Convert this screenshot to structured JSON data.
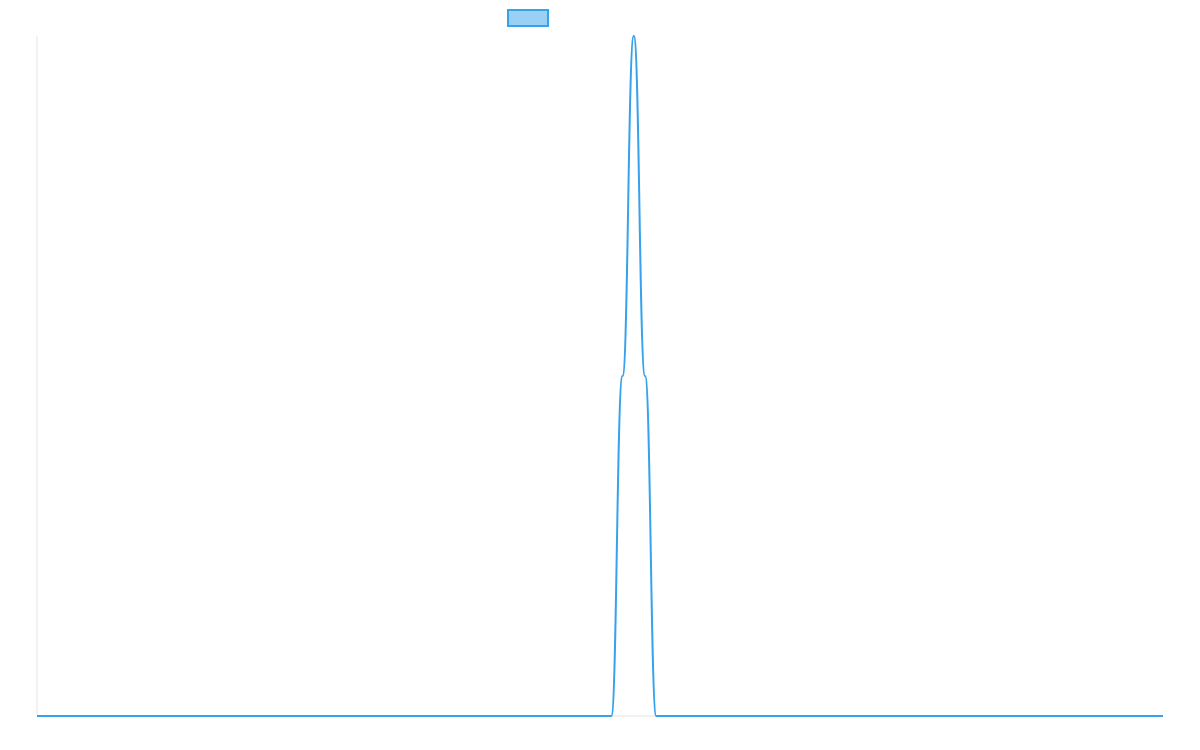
{
  "chart_data": {
    "type": "line",
    "title": "",
    "xlabel": "",
    "ylabel": "",
    "grid": false,
    "legend": {
      "placement": "top-center",
      "entries": [
        {
          "label": "",
          "color": "#36a2eb",
          "fill": "#9ad0f5"
        }
      ]
    },
    "xlim": [
      0,
      100
    ],
    "ylim": [
      0,
      1
    ],
    "series": [
      {
        "color": "#36a2eb",
        "points": [
          [
            0,
            0
          ],
          [
            51,
            0
          ],
          [
            52,
            0.5
          ],
          [
            53,
            1.0
          ],
          [
            54,
            0.5
          ],
          [
            55,
            0
          ],
          [
            100,
            0
          ]
        ]
      }
    ]
  }
}
